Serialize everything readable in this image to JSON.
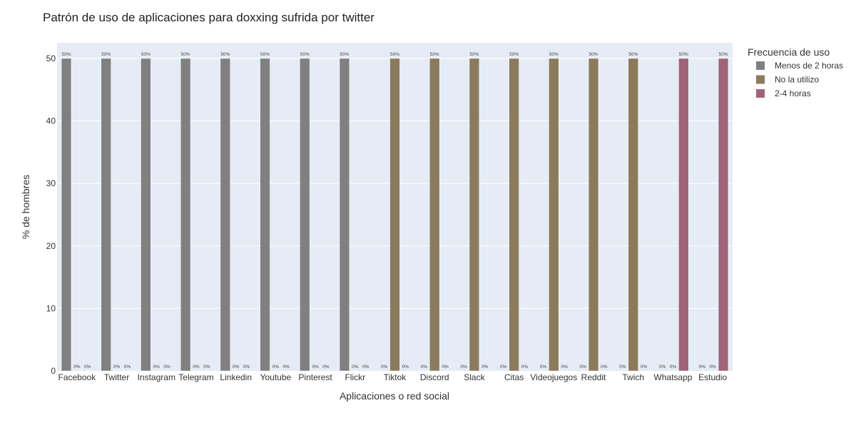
{
  "chart_data": {
    "type": "bar",
    "title": "Patrón de uso de aplicaciones para doxxing sufrida por twitter",
    "xlabel": "Aplicaciones o red social",
    "ylabel": "% de hombres",
    "ylim": [
      0,
      52.5
    ],
    "yticks": [
      0,
      10,
      20,
      30,
      40,
      50
    ],
    "grid": true,
    "legend_position": "top-right",
    "legend_title": "Frecuencia de uso",
    "categories": [
      "Facebook",
      "Twitter",
      "Instagram",
      "Telegram",
      "Linkedin",
      "Youtube",
      "Pinterest",
      "Flickr",
      "Tiktok",
      "Discord",
      "Slack",
      "Citas",
      "Videojuegos",
      "Reddit",
      "Twich",
      "Whatsapp",
      "Estudio"
    ],
    "series": [
      {
        "name": "Menos de 2 horas",
        "color": "#808080",
        "values": [
          50,
          50,
          50,
          50,
          50,
          50,
          50,
          50,
          0,
          0,
          0,
          0,
          0,
          0,
          0,
          0,
          0
        ],
        "labels": [
          "50%",
          "50%",
          "50%",
          "50%",
          "50%",
          "50%",
          "50%",
          "50%",
          "0%",
          "0%",
          "0%",
          "0%",
          "0%",
          "0%",
          "0%",
          "0%",
          "0%"
        ]
      },
      {
        "name": "No la utilizo",
        "color": "#8c7a5d",
        "values": [
          0,
          0,
          0,
          0,
          0,
          0,
          0,
          0,
          50,
          50,
          50,
          50,
          50,
          50,
          50,
          0,
          0
        ],
        "labels": [
          "0%",
          "0%",
          "0%",
          "0%",
          "0%",
          "0%",
          "0%",
          "0%",
          "50%",
          "50%",
          "50%",
          "50%",
          "50%",
          "50%",
          "50%",
          "0%",
          "0%"
        ]
      },
      {
        "name": "2-4 horas",
        "color": "#a06478",
        "values": [
          0,
          0,
          0,
          0,
          0,
          0,
          0,
          0,
          0,
          0,
          0,
          0,
          0,
          0,
          0,
          50,
          50
        ],
        "labels": [
          "0%",
          "0%",
          "0%",
          "0%",
          "0%",
          "0%",
          "0%",
          "0%",
          "0%",
          "0%",
          "0%",
          "0%",
          "0%",
          "0%",
          "0%",
          "50%",
          "50%"
        ]
      }
    ]
  }
}
